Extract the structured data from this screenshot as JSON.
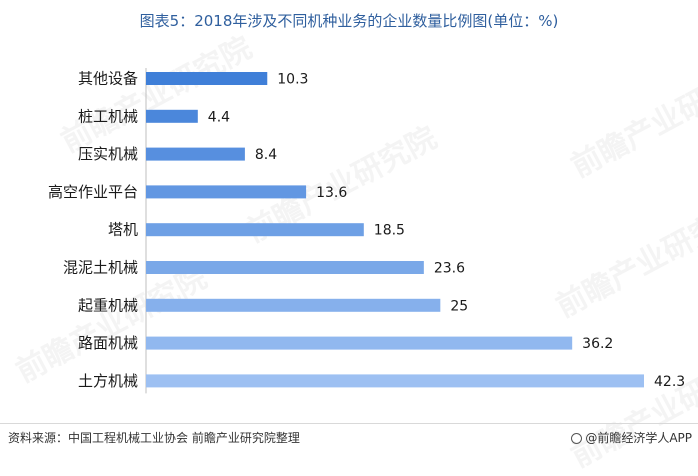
{
  "title": "图表5：2018年涉及不同机种业务的企业数量比例图(单位：%)",
  "watermark_text": "前瞻产业研究院",
  "source": "资料来源：中国工程机械工业协会 前瞻产业研究院整理",
  "brand": "@前瞻经济学人APP",
  "colors": {
    "bar_dark": "#3f7fd8",
    "bar_light": "#9dc0f2",
    "title": "#2f5f9e"
  },
  "chart_data": {
    "type": "bar",
    "orientation": "horizontal",
    "categories": [
      "其他设备",
      "桩工机械",
      "压实机械",
      "高空作业平台",
      "塔机",
      "混泥土机械",
      "起重机械",
      "路面机械",
      "土方机械"
    ],
    "values": [
      10.3,
      4.4,
      8.4,
      13.6,
      18.5,
      23.6,
      25,
      36.2,
      42.3
    ],
    "value_labels": [
      "10.3",
      "4.4",
      "8.4",
      "13.6",
      "18.5",
      "23.6",
      "25",
      "36.2",
      "42.3"
    ],
    "xlim": [
      0,
      42.3
    ],
    "grid": false,
    "legend": "none"
  }
}
